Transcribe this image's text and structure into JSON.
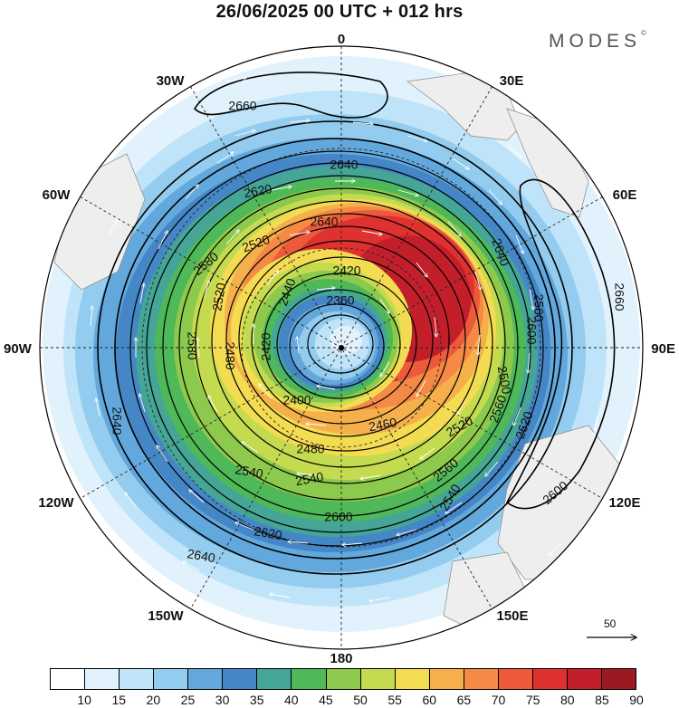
{
  "title": "26/06/2025  00 UTC  + 012 hrs",
  "brand": "MODES",
  "brand_mark": "©",
  "map": {
    "projection": "south-polar-stereographic",
    "longitude_labels": {
      "top": "0",
      "bottom": "180",
      "left": "90W",
      "right": "90E",
      "upper_left": "30W",
      "upper_right": "30E",
      "left_upper": "60W",
      "right_upper": "60E",
      "left_lower": "120W",
      "right_lower": "120E",
      "lower_left": "150W",
      "lower_right": "150E"
    },
    "contour_labels": [
      "2660",
      "2640",
      "2620",
      "2640",
      "2580",
      "2520",
      "2420",
      "2440",
      "2360",
      "2520",
      "2580",
      "2480",
      "2420",
      "2400",
      "2600",
      "2500",
      "2640",
      "2560",
      "2660",
      "2560",
      "2460",
      "2520",
      "2480",
      "2540",
      "2540",
      "2560",
      "2620",
      "2600",
      "2620",
      "2640",
      "2540",
      "2600",
      "2640"
    ],
    "vector_reference": {
      "label": "50",
      "units": ""
    }
  },
  "colorbar": {
    "ticks": [
      "10",
      "15",
      "20",
      "25",
      "30",
      "35",
      "40",
      "45",
      "50",
      "55",
      "60",
      "65",
      "70",
      "75",
      "80",
      "85",
      "90"
    ],
    "colors": [
      "#ffffff",
      "#e1f2fc",
      "#bfe4f9",
      "#93ccee",
      "#62a8dc",
      "#4587c6",
      "#45a596",
      "#4fb858",
      "#8cc94c",
      "#c4db50",
      "#f4dc52",
      "#f6b04b",
      "#f48a45",
      "#ec5a3a",
      "#df3230",
      "#c21f2b",
      "#9b1a22"
    ]
  }
}
